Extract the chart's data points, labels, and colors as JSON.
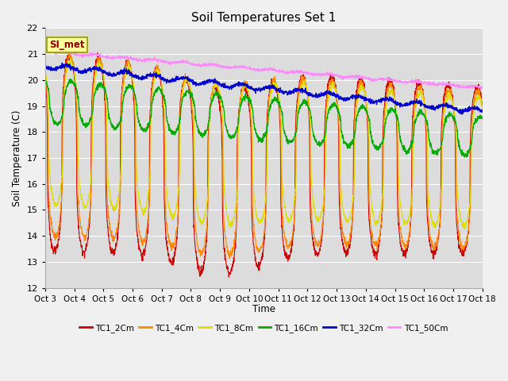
{
  "title": "Soil Temperatures Set 1",
  "ylabel": "Soil Temperature (C)",
  "xlabel": "Time",
  "ylim": [
    12.0,
    22.0
  ],
  "yticks": [
    12.0,
    13.0,
    14.0,
    15.0,
    16.0,
    17.0,
    18.0,
    19.0,
    20.0,
    21.0,
    22.0
  ],
  "xtick_labels": [
    "Oct 3",
    "Oct 4",
    "Oct 5",
    "Oct 6",
    "Oct 7",
    "Oct 8",
    "Oct 9",
    "Oct 10",
    "Oct 11",
    "Oct 12",
    "Oct 13",
    "Oct 14",
    "Oct 15",
    "Oct 16",
    "Oct 17",
    "Oct 18"
  ],
  "legend_label": "SI_met",
  "series": [
    {
      "name": "TC1_2Cm",
      "color": "#cc0000"
    },
    {
      "name": "TC1_4Cm",
      "color": "#ff8800"
    },
    {
      "name": "TC1_8Cm",
      "color": "#dddd00"
    },
    {
      "name": "TC1_16Cm",
      "color": "#00aa00"
    },
    {
      "name": "TC1_32Cm",
      "color": "#0000cc"
    },
    {
      "name": "TC1_50Cm",
      "color": "#ff88ff"
    }
  ],
  "fig_bg": "#f0f0f0",
  "plot_bg": "#dcdcdc",
  "figwidth": 6.4,
  "figheight": 4.8,
  "dpi": 100
}
